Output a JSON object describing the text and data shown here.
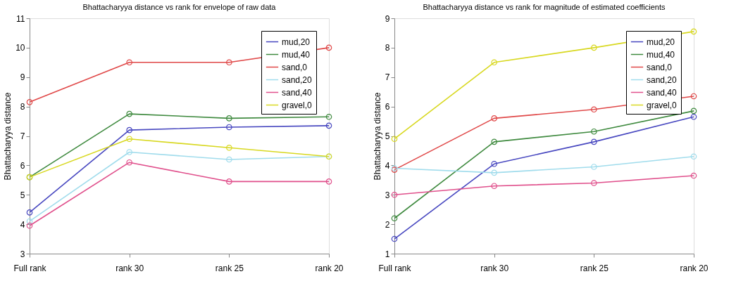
{
  "chart_data": [
    {
      "type": "line",
      "title": "Bhattacharyya distance vs rank for envelope of raw data",
      "ylabel": "Bhattacharyya distance",
      "categories": [
        "Full rank",
        "rank 30",
        "rank 25",
        "rank 20"
      ],
      "ylim": [
        3,
        11
      ],
      "yticks": [
        3,
        4,
        5,
        6,
        7,
        8,
        9,
        10,
        11
      ],
      "grid": false,
      "legend": "top right",
      "marker": "circle",
      "line_style": "solid",
      "series": [
        {
          "name": "mud,20",
          "color": "#4848c0",
          "values": [
            4.4,
            7.2,
            7.3,
            7.35
          ]
        },
        {
          "name": "mud,40",
          "color": "#3f8a3f",
          "values": [
            5.6,
            7.75,
            7.6,
            7.65
          ]
        },
        {
          "name": "sand,0",
          "color": "#e04848",
          "values": [
            8.15,
            9.5,
            9.5,
            10.0
          ]
        },
        {
          "name": "sand,20",
          "color": "#a0dcec",
          "values": [
            4.1,
            6.45,
            6.2,
            6.3
          ]
        },
        {
          "name": "sand,40",
          "color": "#e0508c",
          "values": [
            3.95,
            6.1,
            5.45,
            5.45
          ]
        },
        {
          "name": "gravel,0",
          "color": "#d8d820",
          "values": [
            5.6,
            6.9,
            6.6,
            6.3
          ]
        }
      ]
    },
    {
      "type": "line",
      "title": "Bhattacharyya distance vs rank for magnitude of estimated coefficients",
      "ylabel": "Bhattacharyya distance",
      "categories": [
        "Full rank",
        "rank 30",
        "rank 25",
        "rank 20"
      ],
      "ylim": [
        1,
        9
      ],
      "yticks": [
        1,
        2,
        3,
        4,
        5,
        6,
        7,
        8,
        9
      ],
      "grid": false,
      "legend": "top right",
      "marker": "circle",
      "line_style": "solid",
      "series": [
        {
          "name": "mud,20",
          "color": "#4848c0",
          "values": [
            1.5,
            4.05,
            4.8,
            5.65
          ]
        },
        {
          "name": "mud,40",
          "color": "#3f8a3f",
          "values": [
            2.2,
            4.8,
            5.15,
            5.85
          ]
        },
        {
          "name": "sand,0",
          "color": "#e04848",
          "values": [
            3.85,
            5.6,
            5.9,
            6.35
          ]
        },
        {
          "name": "sand,20",
          "color": "#a0dcec",
          "values": [
            3.9,
            3.75,
            3.95,
            4.3
          ]
        },
        {
          "name": "sand,40",
          "color": "#e0508c",
          "values": [
            3.0,
            3.3,
            3.4,
            3.65
          ]
        },
        {
          "name": "gravel,0",
          "color": "#d8d820",
          "values": [
            4.9,
            7.5,
            8.0,
            8.55
          ]
        }
      ]
    }
  ]
}
